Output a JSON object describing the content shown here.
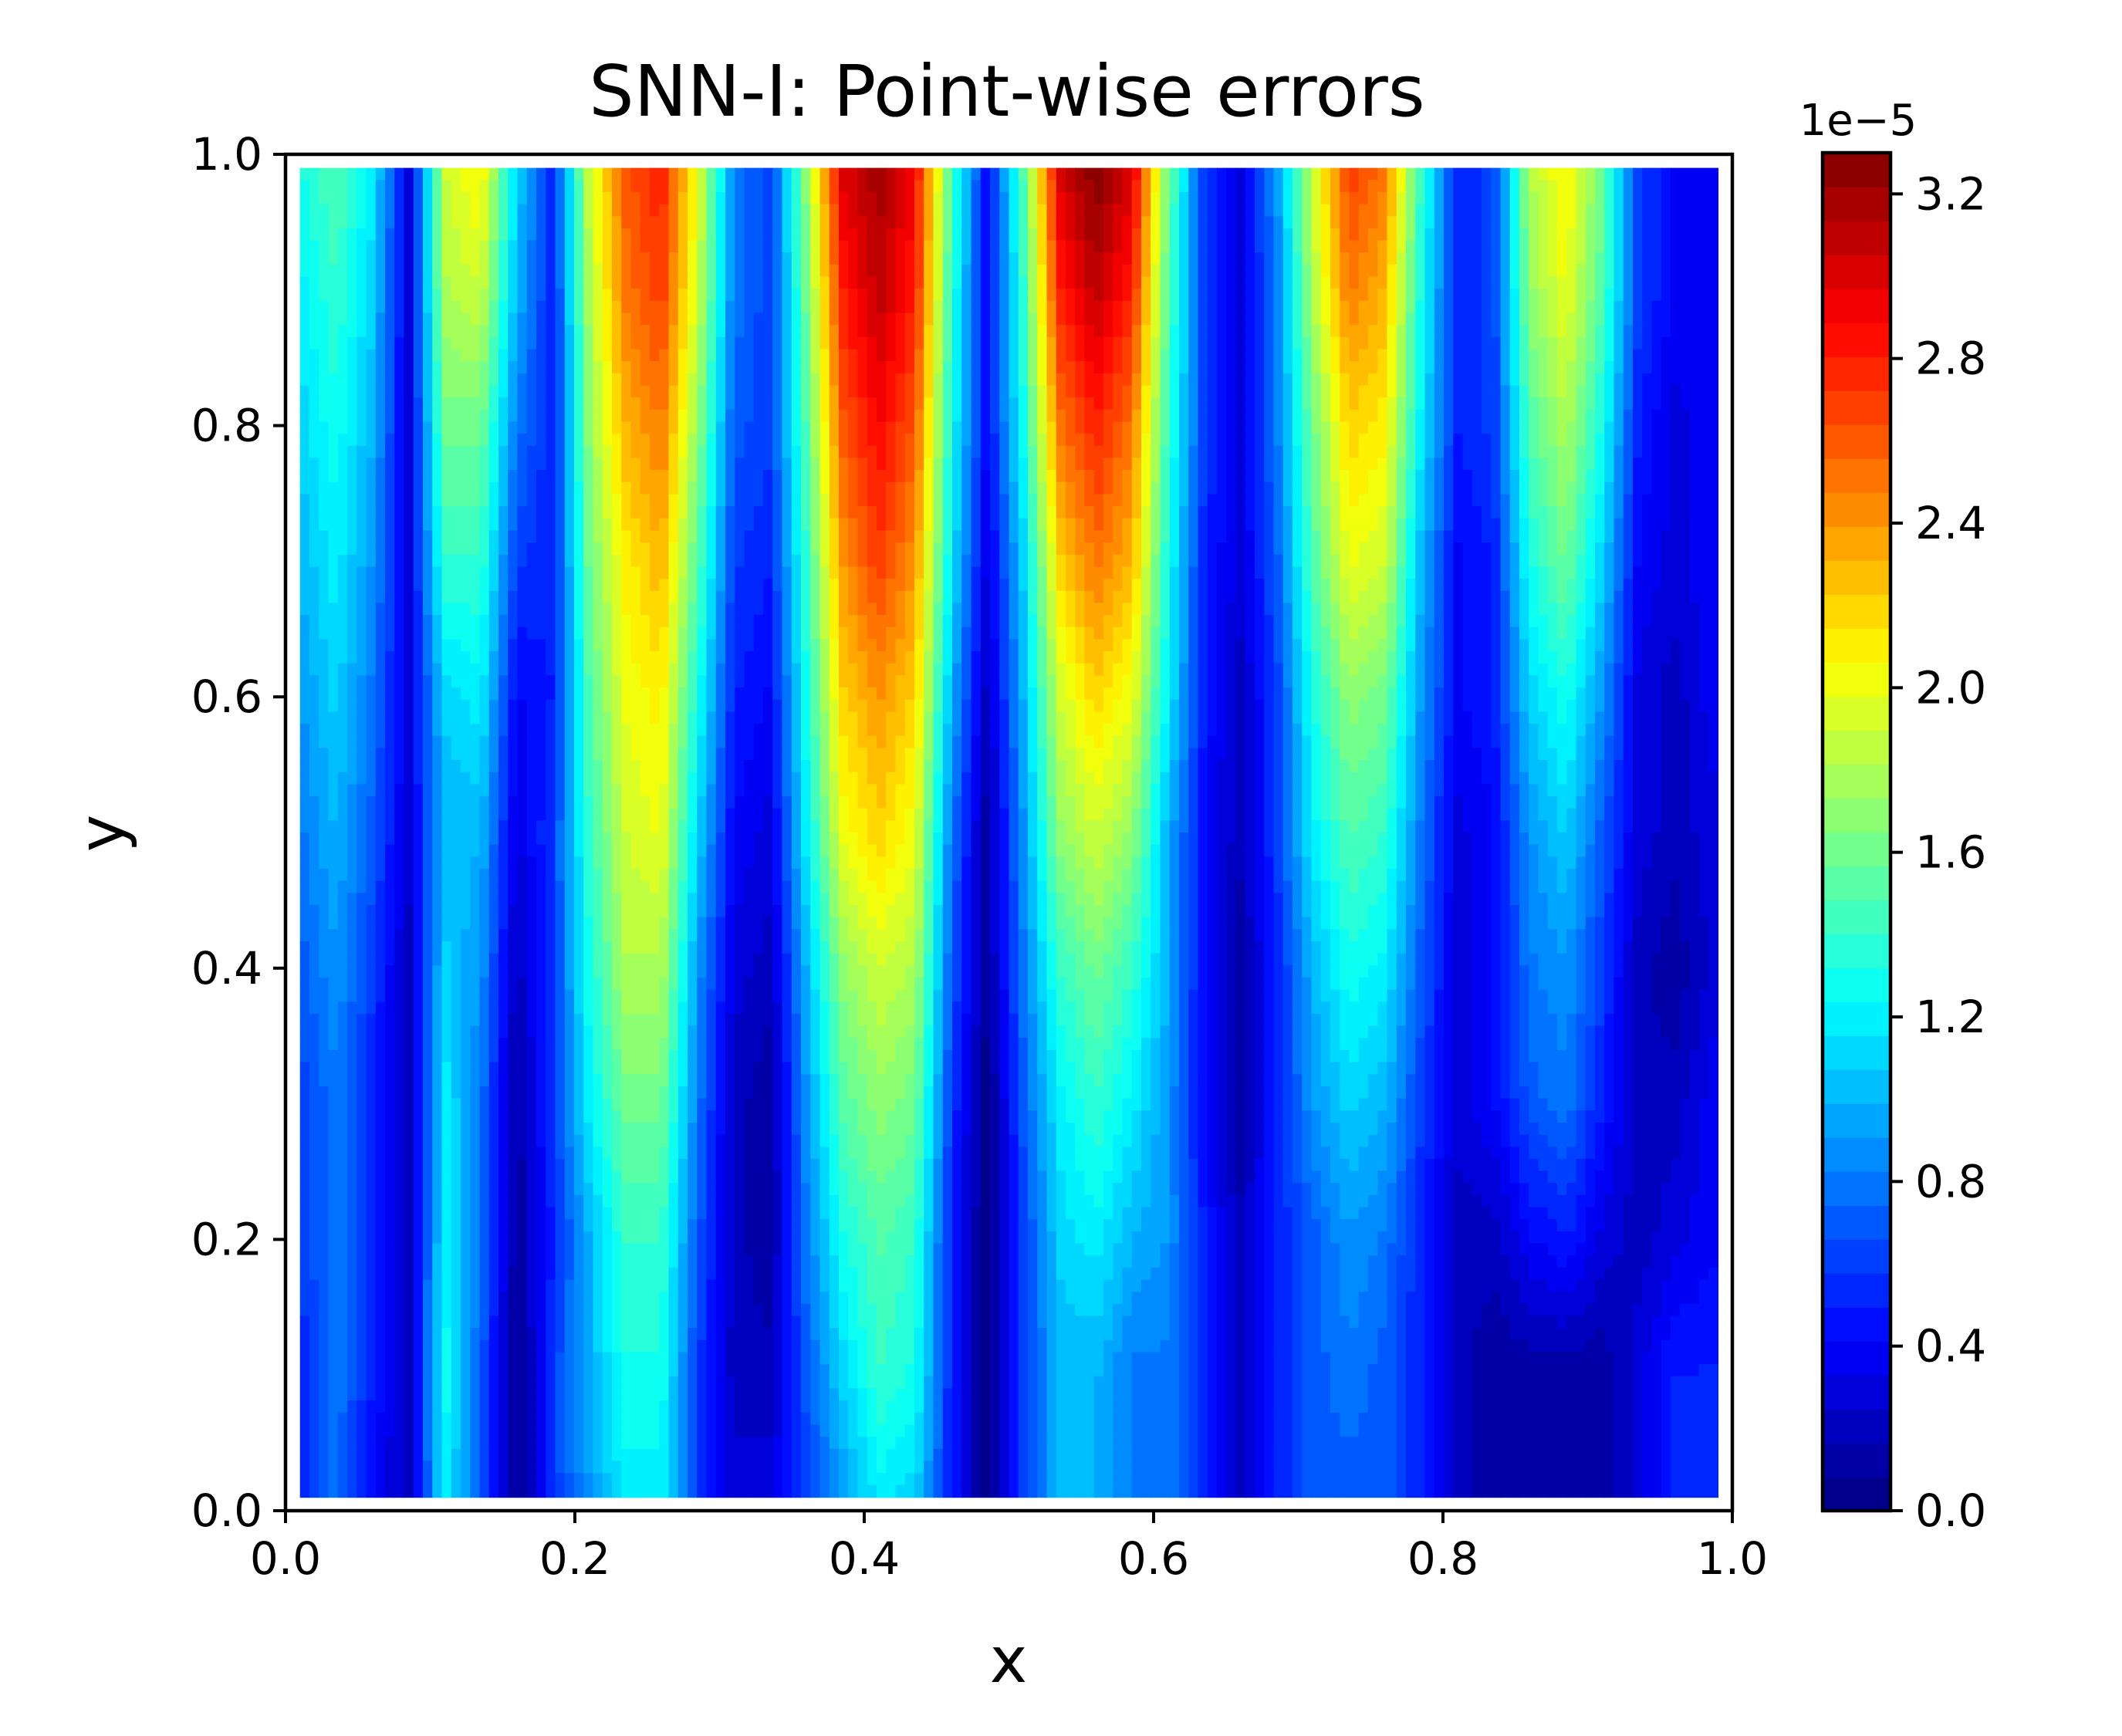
{
  "chart_data": {
    "type": "heatmap",
    "title": "SNN-I: Point-wise errors",
    "xlabel": "x",
    "ylabel": "y",
    "xlim": [
      0.0,
      1.0
    ],
    "ylim": [
      0.0,
      1.0
    ],
    "x_ticks": [
      "0.0",
      "0.2",
      "0.4",
      "0.6",
      "0.8",
      "1.0"
    ],
    "y_ticks": [
      "0.0",
      "0.2",
      "0.4",
      "0.6",
      "0.8",
      "1.0"
    ],
    "colormap": "jet",
    "grid": false,
    "colorbar": {
      "offset_label": "1e−5",
      "range": [
        0.0,
        3.3
      ],
      "ticks": [
        "0.0",
        "0.4",
        "0.8",
        "1.2",
        "1.6",
        "2.0",
        "2.4",
        "2.8",
        "3.2"
      ],
      "levels": 40
    },
    "x_grid": [
      0.01,
      0.035,
      0.06,
      0.085,
      0.11,
      0.135,
      0.16,
      0.185,
      0.21,
      0.235,
      0.26,
      0.285,
      0.31,
      0.335,
      0.36,
      0.385,
      0.41,
      0.435,
      0.46,
      0.485,
      0.51,
      0.535,
      0.56,
      0.585,
      0.61,
      0.635,
      0.66,
      0.685,
      0.71,
      0.735,
      0.76,
      0.785,
      0.81,
      0.835,
      0.86,
      0.885,
      0.91,
      0.935,
      0.96,
      0.99
    ],
    "y_grid": [
      0.01,
      0.1,
      0.2,
      0.3,
      0.4,
      0.5,
      0.6,
      0.7,
      0.8,
      0.9,
      0.99
    ],
    "z_values_1e-5": [
      [
        0.5,
        0.8,
        0.4,
        0.2,
        1.2,
        0.7,
        0.0,
        0.6,
        0.9,
        1.2,
        1.2,
        0.6,
        0.3,
        0.3,
        0.6,
        0.9,
        1.2,
        1.1,
        0.5,
        0.0,
        0.6,
        1.0,
        1.0,
        0.8,
        0.8,
        0.5,
        0.2,
        0.5,
        0.7,
        0.7,
        0.7,
        0.5,
        0.2,
        0.1,
        0.1,
        0.1,
        0.1,
        0.3,
        0.5,
        0.5
      ],
      [
        0.5,
        0.8,
        0.5,
        0.2,
        1.3,
        0.7,
        0.0,
        0.6,
        1.0,
        1.3,
        1.3,
        0.6,
        0.2,
        0.2,
        0.7,
        1.1,
        1.4,
        1.3,
        0.5,
        0.0,
        0.6,
        1.0,
        1.0,
        0.8,
        0.8,
        0.5,
        0.2,
        0.5,
        0.7,
        0.8,
        0.7,
        0.5,
        0.2,
        0.1,
        0.1,
        0.1,
        0.1,
        0.3,
        0.5,
        0.5
      ],
      [
        0.6,
        0.8,
        0.5,
        0.2,
        1.2,
        0.8,
        0.1,
        0.5,
        1.0,
        1.4,
        1.4,
        0.7,
        0.2,
        0.1,
        0.8,
        1.3,
        1.5,
        1.4,
        0.5,
        0.0,
        0.6,
        1.1,
        1.2,
        1.0,
        0.9,
        0.5,
        0.2,
        0.5,
        0.7,
        0.9,
        0.8,
        0.5,
        0.2,
        0.2,
        0.4,
        0.5,
        0.3,
        0.2,
        0.3,
        0.4
      ],
      [
        0.6,
        0.8,
        0.5,
        0.2,
        1.2,
        0.8,
        0.1,
        0.6,
        1.2,
        1.6,
        1.6,
        0.8,
        0.2,
        0.1,
        0.9,
        1.5,
        1.7,
        1.6,
        0.6,
        0.0,
        0.7,
        1.2,
        1.4,
        1.2,
        0.9,
        0.4,
        0.1,
        0.5,
        0.9,
        1.1,
        1.0,
        0.6,
        0.3,
        0.4,
        0.7,
        0.8,
        0.5,
        0.2,
        0.2,
        0.4
      ],
      [
        0.7,
        0.9,
        0.6,
        0.2,
        1.1,
        0.9,
        0.2,
        0.6,
        1.3,
        1.8,
        1.8,
        0.9,
        0.3,
        0.2,
        1.0,
        1.7,
        1.9,
        1.8,
        0.7,
        0.1,
        0.8,
        1.4,
        1.6,
        1.4,
        1.0,
        0.4,
        0.1,
        0.5,
        1.0,
        1.3,
        1.2,
        0.7,
        0.3,
        0.4,
        0.8,
        0.9,
        0.6,
        0.2,
        0.1,
        0.3
      ],
      [
        0.8,
        1.0,
        0.7,
        0.3,
        1.0,
        1.0,
        0.3,
        0.6,
        1.4,
        1.9,
        2.0,
        1.1,
        0.4,
        0.3,
        1.2,
        2.0,
        2.2,
        2.0,
        0.8,
        0.1,
        0.9,
        1.7,
        1.9,
        1.7,
        1.0,
        0.4,
        0.2,
        0.6,
        1.2,
        1.5,
        1.4,
        0.8,
        0.3,
        0.4,
        0.9,
        1.1,
        0.7,
        0.3,
        0.2,
        0.3
      ],
      [
        0.9,
        1.1,
        0.8,
        0.3,
        1.1,
        1.2,
        0.4,
        0.5,
        1.5,
        2.0,
        2.1,
        1.3,
        0.5,
        0.4,
        1.3,
        2.2,
        2.4,
        2.2,
        1.0,
        0.2,
        1.0,
        1.9,
        2.2,
        2.0,
        1.2,
        0.5,
        0.2,
        0.6,
        1.3,
        1.7,
        1.6,
        0.9,
        0.4,
        0.5,
        1.1,
        1.3,
        0.9,
        0.3,
        0.2,
        0.4
      ],
      [
        1.0,
        1.2,
        0.9,
        0.3,
        1.4,
        1.4,
        0.6,
        0.5,
        1.6,
        2.1,
        2.3,
        1.5,
        0.6,
        0.5,
        1.4,
        2.4,
        2.7,
        2.4,
        1.2,
        0.3,
        1.1,
        2.2,
        2.5,
        2.3,
        1.3,
        0.5,
        0.3,
        0.7,
        1.5,
        2.0,
        1.9,
        1.0,
        0.4,
        0.5,
        1.3,
        1.6,
        1.1,
        0.4,
        0.3,
        0.4
      ],
      [
        1.1,
        1.3,
        1.0,
        0.3,
        1.6,
        1.6,
        0.8,
        0.5,
        1.7,
        2.3,
        2.5,
        1.7,
        0.7,
        0.6,
        1.5,
        2.6,
        2.9,
        2.6,
        1.3,
        0.4,
        1.3,
        2.5,
        2.8,
        2.5,
        1.4,
        0.6,
        0.3,
        0.8,
        1.6,
        2.2,
        2.1,
        1.2,
        0.5,
        0.6,
        1.5,
        1.8,
        1.3,
        0.5,
        0.3,
        0.4
      ],
      [
        1.2,
        1.4,
        1.1,
        0.3,
        1.8,
        1.9,
        1.0,
        0.5,
        1.8,
        2.5,
        2.7,
        1.9,
        0.8,
        0.6,
        1.6,
        2.8,
        3.1,
        2.8,
        1.4,
        0.4,
        1.4,
        2.8,
        3.1,
        2.8,
        1.5,
        0.6,
        0.3,
        0.8,
        1.8,
        2.5,
        2.3,
        1.3,
        0.5,
        0.6,
        1.7,
        2.0,
        1.5,
        0.6,
        0.4,
        0.4
      ],
      [
        1.3,
        1.5,
        1.2,
        0.3,
        1.9,
        2.1,
        1.1,
        0.5,
        1.9,
        2.6,
        2.8,
        2.0,
        0.8,
        0.6,
        1.7,
        3.0,
        3.2,
        2.9,
        1.5,
        0.4,
        1.5,
        3.0,
        3.3,
        3.0,
        1.6,
        0.6,
        0.3,
        0.9,
        1.9,
        2.7,
        2.5,
        1.4,
        0.5,
        0.6,
        1.8,
        2.1,
        1.6,
        0.6,
        0.4,
        0.4
      ]
    ]
  }
}
